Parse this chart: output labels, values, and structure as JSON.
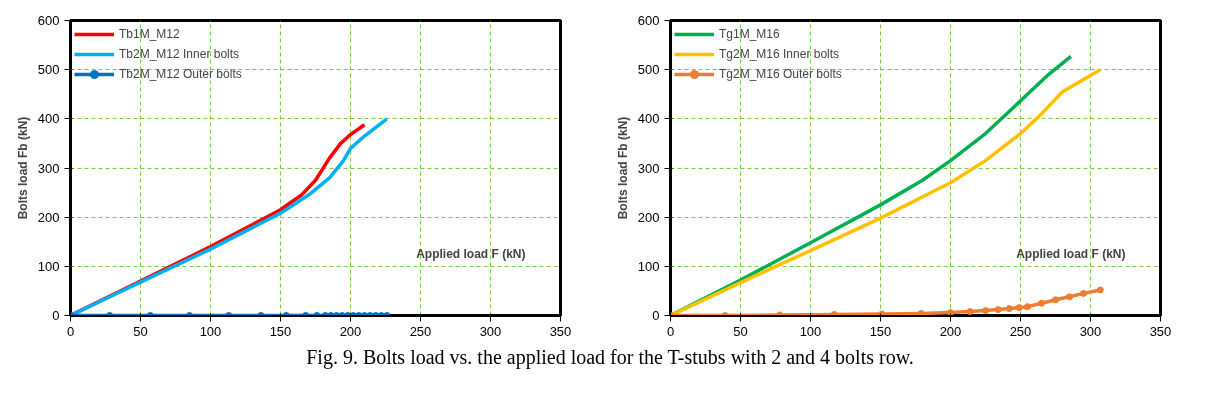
{
  "chart_data": [
    {
      "type": "line",
      "ylabel": "Bolts load Fb (kN)",
      "xlabel": "Applied load F (kN)",
      "xlim": [
        0,
        350
      ],
      "xticks": [
        0,
        50,
        100,
        150,
        200,
        250,
        300,
        350
      ],
      "ylim": [
        0,
        600
      ],
      "yticks": [
        0,
        100,
        200,
        300,
        400,
        500,
        600
      ],
      "grid": true,
      "legend": "top left",
      "marker": "none",
      "series": [
        {
          "name": "Tb1M_M12",
          "color": "#ff0000",
          "x": [
            0,
            50,
            100,
            150,
            165,
            175,
            185,
            193,
            200,
            210
          ],
          "values": [
            0,
            70,
            140,
            215,
            245,
            275,
            320,
            350,
            368,
            388
          ]
        },
        {
          "name": "Tb2M_M12 Inner bolts",
          "color": "#00b0f0",
          "x": [
            0,
            50,
            100,
            150,
            170,
            185,
            195,
            200,
            210,
            226
          ],
          "values": [
            0,
            68,
            135,
            208,
            245,
            280,
            315,
            340,
            365,
            400
          ]
        },
        {
          "name": "Tb2M_M12 Outer bolts",
          "color": "#0070c0",
          "marker": "circle",
          "x": [
            0,
            28,
            57,
            85,
            113,
            136,
            154,
            168,
            176,
            182,
            186,
            190,
            194,
            198,
            202,
            206,
            210,
            214,
            218,
            222,
            226
          ],
          "values": [
            0,
            0,
            0,
            0,
            0,
            0,
            0,
            0,
            0,
            0,
            0,
            0,
            0,
            0,
            0,
            0,
            0,
            0,
            0,
            0,
            0
          ]
        }
      ],
      "annotations": [
        "Fig. 9. Bolts load vs. the applied load for the T-stubs with 2 and 4 bolts row."
      ]
    },
    {
      "type": "line",
      "ylabel": "Bolts load Fb (kN)",
      "xlabel": "Applied load F (kN)",
      "xlim": [
        0,
        350
      ],
      "xticks": [
        0,
        50,
        100,
        150,
        200,
        250,
        300,
        350
      ],
      "ylim": [
        0,
        600
      ],
      "yticks": [
        0,
        100,
        200,
        300,
        400,
        500,
        600
      ],
      "grid": true,
      "legend": "top left",
      "marker": "none",
      "series": [
        {
          "name": "Tg1M_M16",
          "color": "#00b050",
          "x": [
            0,
            50,
            100,
            150,
            180,
            200,
            225,
            240,
            255,
            270,
            286
          ],
          "values": [
            0,
            72,
            148,
            225,
            275,
            315,
            370,
            410,
            450,
            490,
            527
          ]
        },
        {
          "name": "Tg2M_M16 Inner bolts",
          "color": "#ffc000",
          "x": [
            0,
            50,
            100,
            150,
            200,
            225,
            250,
            265,
            280,
            307
          ],
          "values": [
            0,
            67,
            132,
            198,
            270,
            315,
            370,
            410,
            455,
            500
          ]
        },
        {
          "name": "Tg2M_M16 Outer bolts",
          "color": "#ed7d31",
          "marker": "circle",
          "x": [
            0,
            39,
            78,
            117,
            151,
            179,
            200,
            214,
            225,
            234,
            242,
            249,
            255,
            265,
            275,
            285,
            295,
            307
          ],
          "values": [
            0,
            0,
            1,
            2,
            3,
            4,
            6,
            8,
            10,
            12,
            14,
            16,
            18,
            25,
            32,
            38,
            45,
            52
          ]
        }
      ]
    }
  ]
}
